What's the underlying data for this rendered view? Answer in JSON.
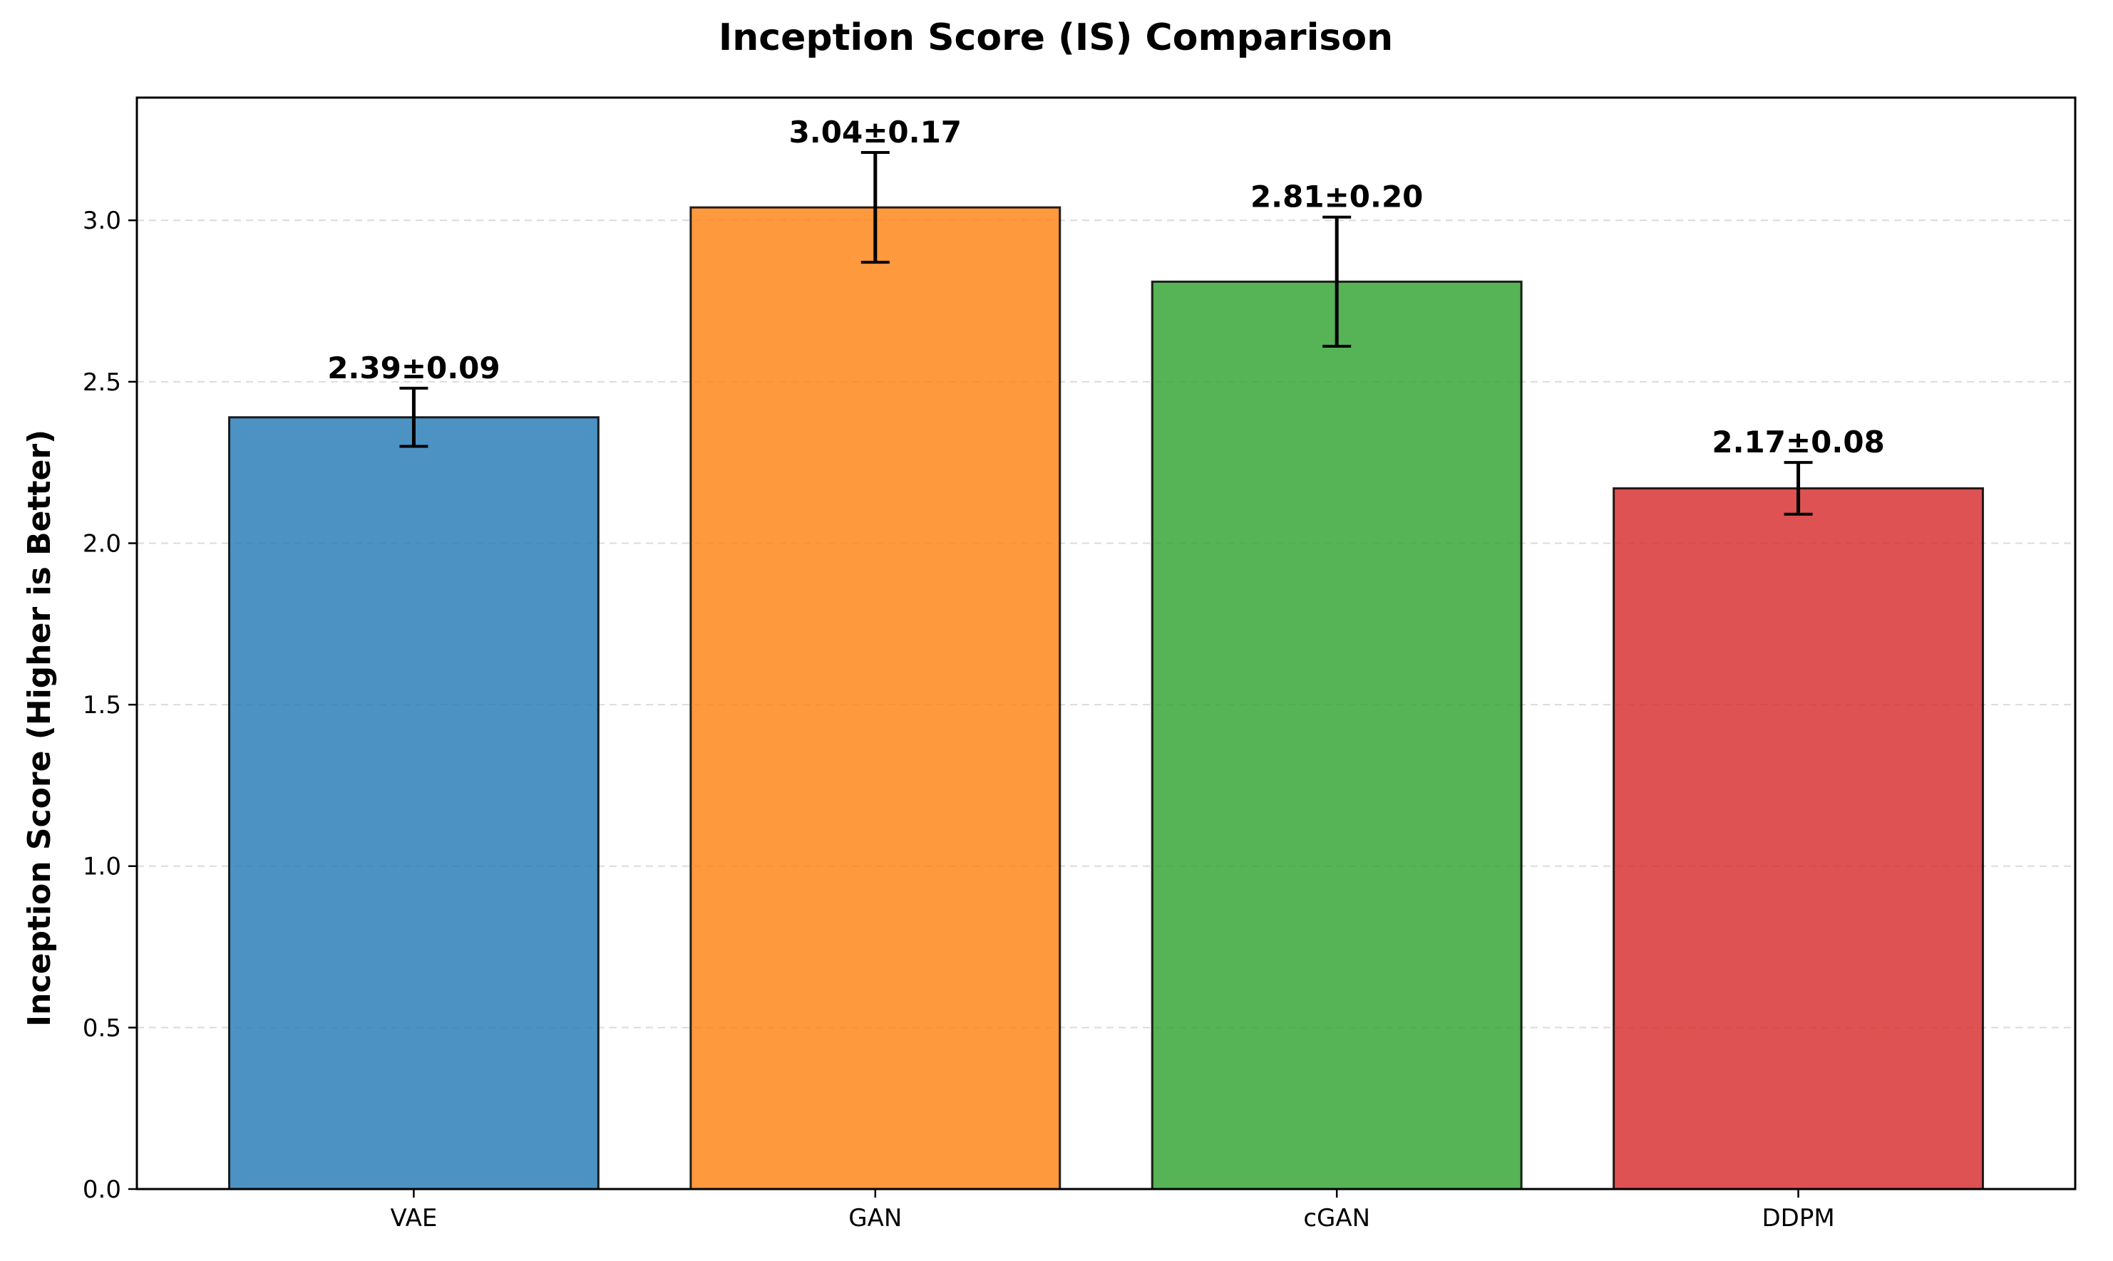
{
  "chart_data": {
    "type": "bar",
    "title": "Inception Score (IS) Comparison",
    "xlabel": "",
    "ylabel": "Inception Score (Higher is Better)",
    "categories": [
      "VAE",
      "GAN",
      "cGAN",
      "DDPM"
    ],
    "values": [
      2.39,
      3.04,
      2.81,
      2.17
    ],
    "errors": [
      0.09,
      0.17,
      0.2,
      0.08
    ],
    "data_labels": [
      "2.39±0.09",
      "3.04±0.17",
      "2.81±0.20",
      "2.17±0.08"
    ],
    "colors": [
      "#1f77b4",
      "#ff7f0e",
      "#2ca02c",
      "#d62728"
    ],
    "ylim": [
      0,
      3.38
    ],
    "yticks": [
      0.0,
      0.5,
      1.0,
      1.5,
      2.0,
      2.5,
      3.0
    ],
    "ytick_labels": [
      "0.0",
      "0.5",
      "1.0",
      "1.5",
      "2.0",
      "2.5",
      "3.0"
    ],
    "grid": "y-dashed"
  }
}
